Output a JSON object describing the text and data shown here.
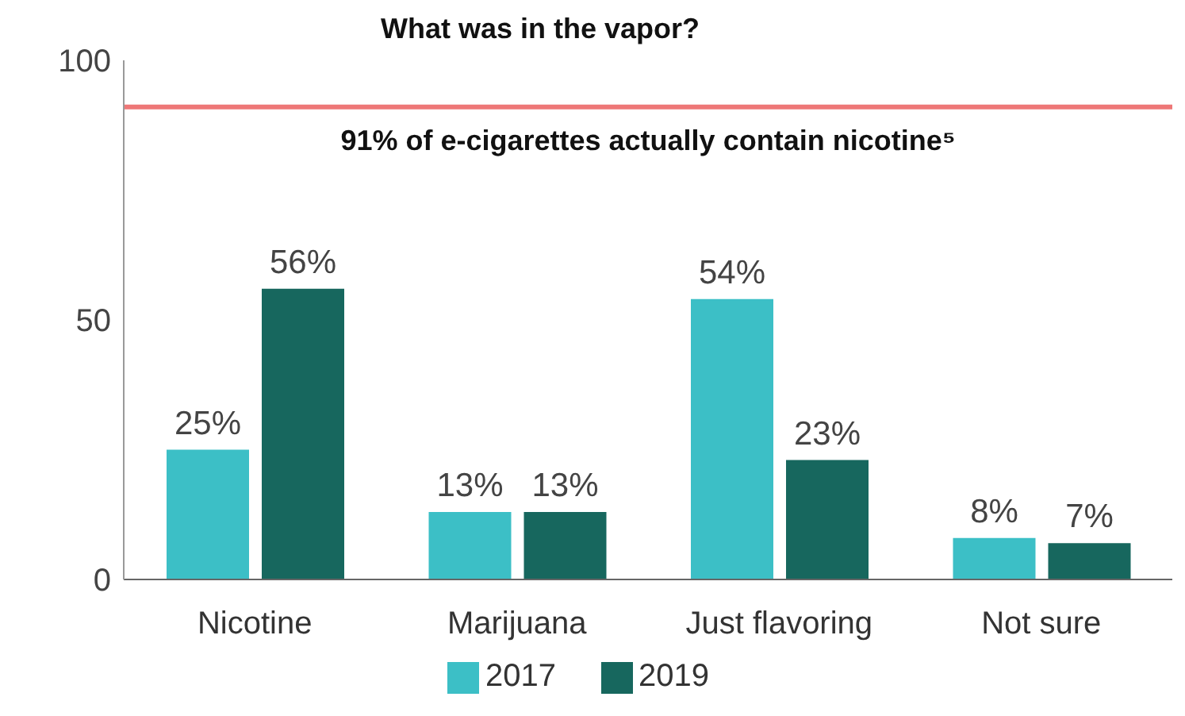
{
  "chart_data": {
    "type": "bar",
    "title": "What was in the vapor?",
    "categories": [
      "Nicotine",
      "Marijuana",
      "Just flavoring",
      "Not sure"
    ],
    "series": [
      {
        "name": "2017",
        "color": "#3cbfc6",
        "values": [
          25,
          13,
          54,
          8
        ],
        "value_labels": [
          "25%",
          "13%",
          "54%",
          "8%"
        ]
      },
      {
        "name": "2019",
        "color": "#17675e",
        "values": [
          56,
          13,
          23,
          7
        ],
        "value_labels": [
          "56%",
          "13%",
          "23%",
          "7%"
        ]
      }
    ],
    "ylim": [
      0,
      100
    ],
    "yticks": [
      0,
      50,
      100
    ],
    "grid": false,
    "legend": "bottom",
    "ref_lines": [
      {
        "axis": "y",
        "value": 91,
        "label": "91% of e-cigarettes actually contain nicotine⁵",
        "color": "#ee7777"
      }
    ]
  }
}
